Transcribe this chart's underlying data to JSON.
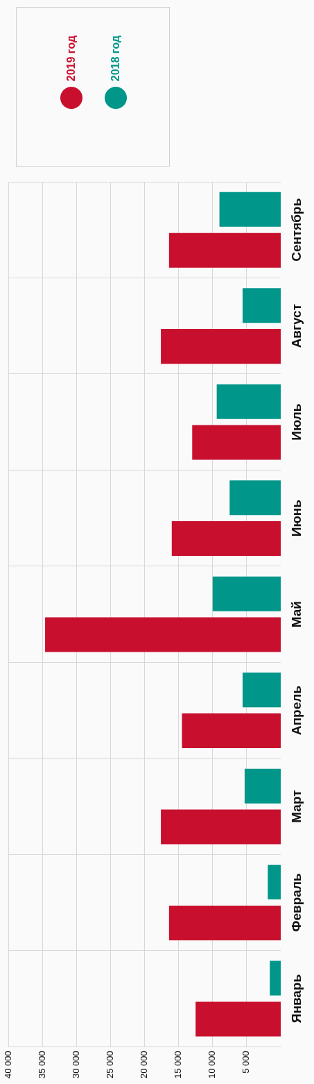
{
  "chart_data": {
    "type": "bar",
    "orientation": "horizontal",
    "categories": [
      "Сентябрь",
      "Август",
      "Июль",
      "Июнь",
      "Май",
      "Апрель",
      "Март",
      "Февраль",
      "Январь"
    ],
    "series": [
      {
        "name": "2018 год",
        "color": "#00968a",
        "values": [
          9000,
          5600,
          9400,
          7500,
          10000,
          5600,
          5300,
          1900,
          1600
        ]
      },
      {
        "name": "2019 год",
        "color": "#c8102e",
        "values": [
          16400,
          17600,
          13000,
          16000,
          34600,
          14500,
          17600,
          16400,
          12500
        ]
      }
    ],
    "xlim": [
      40000,
      0
    ],
    "xticks": [
      {
        "value": 40000,
        "label": "40 000"
      },
      {
        "value": 35000,
        "label": "35 000"
      },
      {
        "value": 30000,
        "label": "30 000"
      },
      {
        "value": 25000,
        "label": "25 000"
      },
      {
        "value": 20000,
        "label": "20 000"
      },
      {
        "value": 15000,
        "label": "15 000"
      },
      {
        "value": 10000,
        "label": "10 000"
      },
      {
        "value": 5000,
        "label": "5 000"
      }
    ],
    "grid": true,
    "legend": "top"
  }
}
